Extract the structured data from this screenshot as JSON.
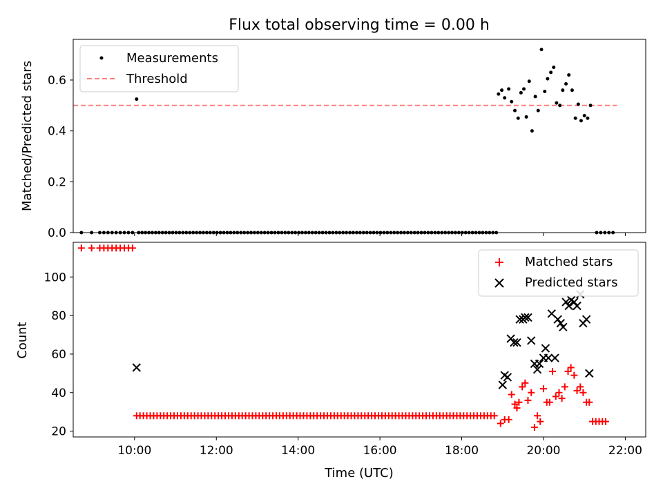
{
  "chart_data": [
    {
      "type": "scatter",
      "title": "Flux total observing time = 0.00 h",
      "xlabel": "",
      "ylabel": "Matched/Predicted stars",
      "ylim": [
        0,
        0.76
      ],
      "yticks": [
        0.0,
        0.2,
        0.4,
        0.6
      ],
      "ytick_labels": [
        "0.0",
        "0.2",
        "0.4",
        "0.6"
      ],
      "xlim": [
        8.5,
        22.5
      ],
      "grid": false,
      "legend": "top-left",
      "threshold": {
        "name": "Threshold",
        "value": 0.5,
        "x_range": [
          8.5,
          21.8
        ],
        "color": "#ff7f7f"
      },
      "series": [
        {
          "name": "Measurements",
          "color": "#000000",
          "points": [
            [
              8.7,
              0
            ],
            [
              8.95,
              0
            ],
            [
              9.15,
              0
            ],
            [
              9.25,
              0
            ],
            [
              9.35,
              0
            ],
            [
              9.45,
              0
            ],
            [
              9.55,
              0
            ],
            [
              9.65,
              0
            ],
            [
              9.75,
              0
            ],
            [
              9.85,
              0
            ],
            [
              9.95,
              0
            ],
            [
              10.05,
              0.525
            ],
            [
              18.9,
              0.545
            ],
            [
              18.98,
              0.56
            ],
            [
              19.05,
              0.53
            ],
            [
              19.15,
              0.565
            ],
            [
              19.22,
              0.515
            ],
            [
              19.3,
              0.48
            ],
            [
              19.38,
              0.45
            ],
            [
              19.45,
              0.55
            ],
            [
              19.52,
              0.565
            ],
            [
              19.58,
              0.455
            ],
            [
              19.65,
              0.595
            ],
            [
              19.72,
              0.4
            ],
            [
              19.8,
              0.535
            ],
            [
              19.87,
              0.48
            ],
            [
              19.95,
              0.72
            ],
            [
              20.03,
              0.555
            ],
            [
              20.1,
              0.605
            ],
            [
              20.18,
              0.63
            ],
            [
              20.25,
              0.65
            ],
            [
              20.32,
              0.51
            ],
            [
              20.4,
              0.5
            ],
            [
              20.47,
              0.56
            ],
            [
              20.55,
              0.585
            ],
            [
              20.62,
              0.62
            ],
            [
              20.7,
              0.56
            ],
            [
              20.78,
              0.45
            ],
            [
              20.85,
              0.505
            ],
            [
              20.92,
              0.44
            ],
            [
              21.0,
              0.46
            ],
            [
              21.08,
              0.45
            ],
            [
              21.15,
              0.5
            ],
            [
              21.3,
              0
            ],
            [
              21.4,
              0
            ],
            [
              21.5,
              0
            ],
            [
              21.6,
              0
            ],
            [
              21.7,
              0
            ]
          ],
          "zero_band": {
            "y": 0,
            "x_from": 10.1,
            "x_to": 18.85,
            "step": 0.0833
          }
        }
      ]
    },
    {
      "type": "scatter",
      "title": "",
      "xlabel": "Time (UTC)",
      "ylabel": "Count",
      "ylim": [
        17,
        118
      ],
      "yticks": [
        20,
        40,
        60,
        80,
        100
      ],
      "ytick_labels": [
        "20",
        "40",
        "60",
        "80",
        "100"
      ],
      "xlim": [
        8.5,
        22.5
      ],
      "xticks": [
        10,
        12,
        14,
        16,
        18,
        20,
        22
      ],
      "xtick_labels": [
        "10:00",
        "12:00",
        "14:00",
        "16:00",
        "18:00",
        "20:00",
        "22:00"
      ],
      "grid": false,
      "legend": "top-right",
      "series": [
        {
          "name": "Matched stars",
          "marker": "plus",
          "color": "#ff0000",
          "points": [
            [
              8.7,
              115
            ],
            [
              8.95,
              115
            ],
            [
              9.15,
              115
            ],
            [
              9.25,
              115
            ],
            [
              9.35,
              115
            ],
            [
              9.45,
              115
            ],
            [
              9.55,
              115
            ],
            [
              9.65,
              115
            ],
            [
              9.75,
              115
            ],
            [
              9.85,
              115
            ],
            [
              9.95,
              115
            ],
            [
              18.95,
              24
            ],
            [
              19.05,
              26
            ],
            [
              19.15,
              26
            ],
            [
              19.22,
              39
            ],
            [
              19.3,
              34
            ],
            [
              19.35,
              32
            ],
            [
              19.4,
              35
            ],
            [
              19.48,
              43
            ],
            [
              19.55,
              45
            ],
            [
              19.62,
              36
            ],
            [
              19.7,
              40
            ],
            [
              19.78,
              22
            ],
            [
              19.85,
              28
            ],
            [
              19.92,
              25
            ],
            [
              20.0,
              42
            ],
            [
              20.08,
              35
            ],
            [
              20.15,
              35
            ],
            [
              20.22,
              51
            ],
            [
              20.3,
              38
            ],
            [
              20.38,
              40
            ],
            [
              20.45,
              37
            ],
            [
              20.52,
              43
            ],
            [
              20.6,
              51
            ],
            [
              20.67,
              53
            ],
            [
              20.75,
              49
            ],
            [
              20.82,
              41
            ],
            [
              20.9,
              43
            ],
            [
              20.97,
              40
            ],
            [
              21.05,
              35
            ],
            [
              21.12,
              35
            ],
            [
              21.2,
              25
            ],
            [
              21.28,
              25
            ],
            [
              21.36,
              25
            ],
            [
              21.44,
              25
            ],
            [
              21.52,
              25
            ]
          ],
          "flat_band": {
            "y": 28,
            "x_from": 10.05,
            "x_to": 18.85,
            "step": 0.0833
          }
        },
        {
          "name": "Predicted stars",
          "marker": "x",
          "color": "#000000",
          "points": [
            [
              10.05,
              53
            ],
            [
              19.0,
              44
            ],
            [
              19.05,
              49
            ],
            [
              19.12,
              48
            ],
            [
              19.2,
              68
            ],
            [
              19.28,
              66
            ],
            [
              19.35,
              66
            ],
            [
              19.42,
              78
            ],
            [
              19.5,
              78
            ],
            [
              19.55,
              79
            ],
            [
              19.62,
              79
            ],
            [
              19.7,
              67
            ],
            [
              19.78,
              55
            ],
            [
              19.85,
              52
            ],
            [
              19.9,
              55
            ],
            [
              20.0,
              58
            ],
            [
              20.05,
              63
            ],
            [
              20.12,
              58
            ],
            [
              20.2,
              81
            ],
            [
              20.28,
              58
            ],
            [
              20.35,
              78
            ],
            [
              20.42,
              76
            ],
            [
              20.48,
              74
            ],
            [
              20.55,
              87
            ],
            [
              20.62,
              85
            ],
            [
              20.68,
              88
            ],
            [
              20.75,
              87
            ],
            [
              20.82,
              85
            ],
            [
              20.9,
              91
            ],
            [
              20.97,
              76
            ],
            [
              21.05,
              78
            ],
            [
              21.12,
              50
            ]
          ]
        }
      ]
    }
  ]
}
